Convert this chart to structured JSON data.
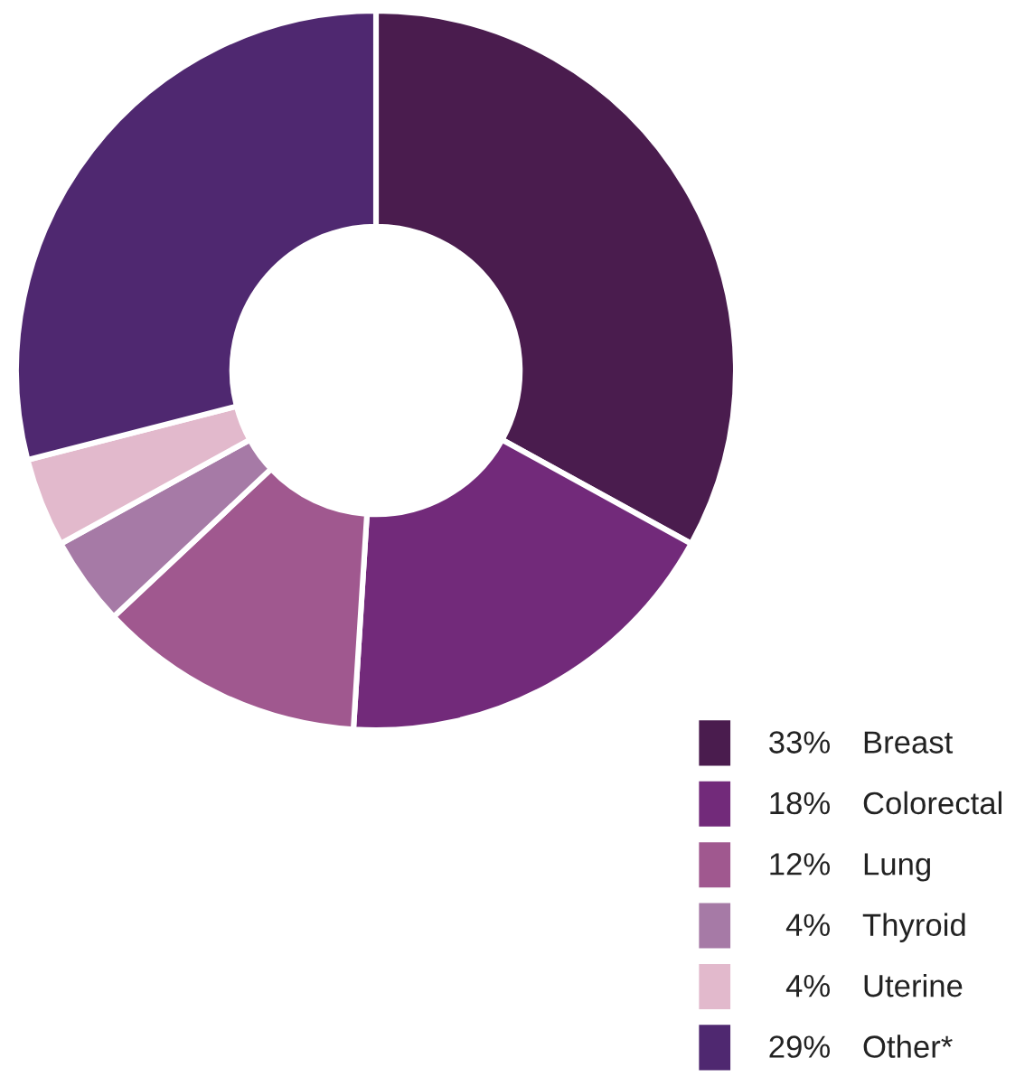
{
  "chart_data": {
    "type": "donut",
    "categories": [
      "Breast",
      "Colorectal",
      "Lung",
      "Thyroid",
      "Uterine",
      "Other*"
    ],
    "values": [
      33,
      18,
      12,
      4,
      4,
      29
    ],
    "value_labels": [
      "33%",
      "18%",
      "12%",
      "4%",
      "4%",
      "29%"
    ],
    "colors": [
      "#4a1c4e",
      "#722a7a",
      "#a0588f",
      "#a67aa6",
      "#e2b9cc",
      "#4f2870"
    ],
    "legend": "bottom right"
  }
}
